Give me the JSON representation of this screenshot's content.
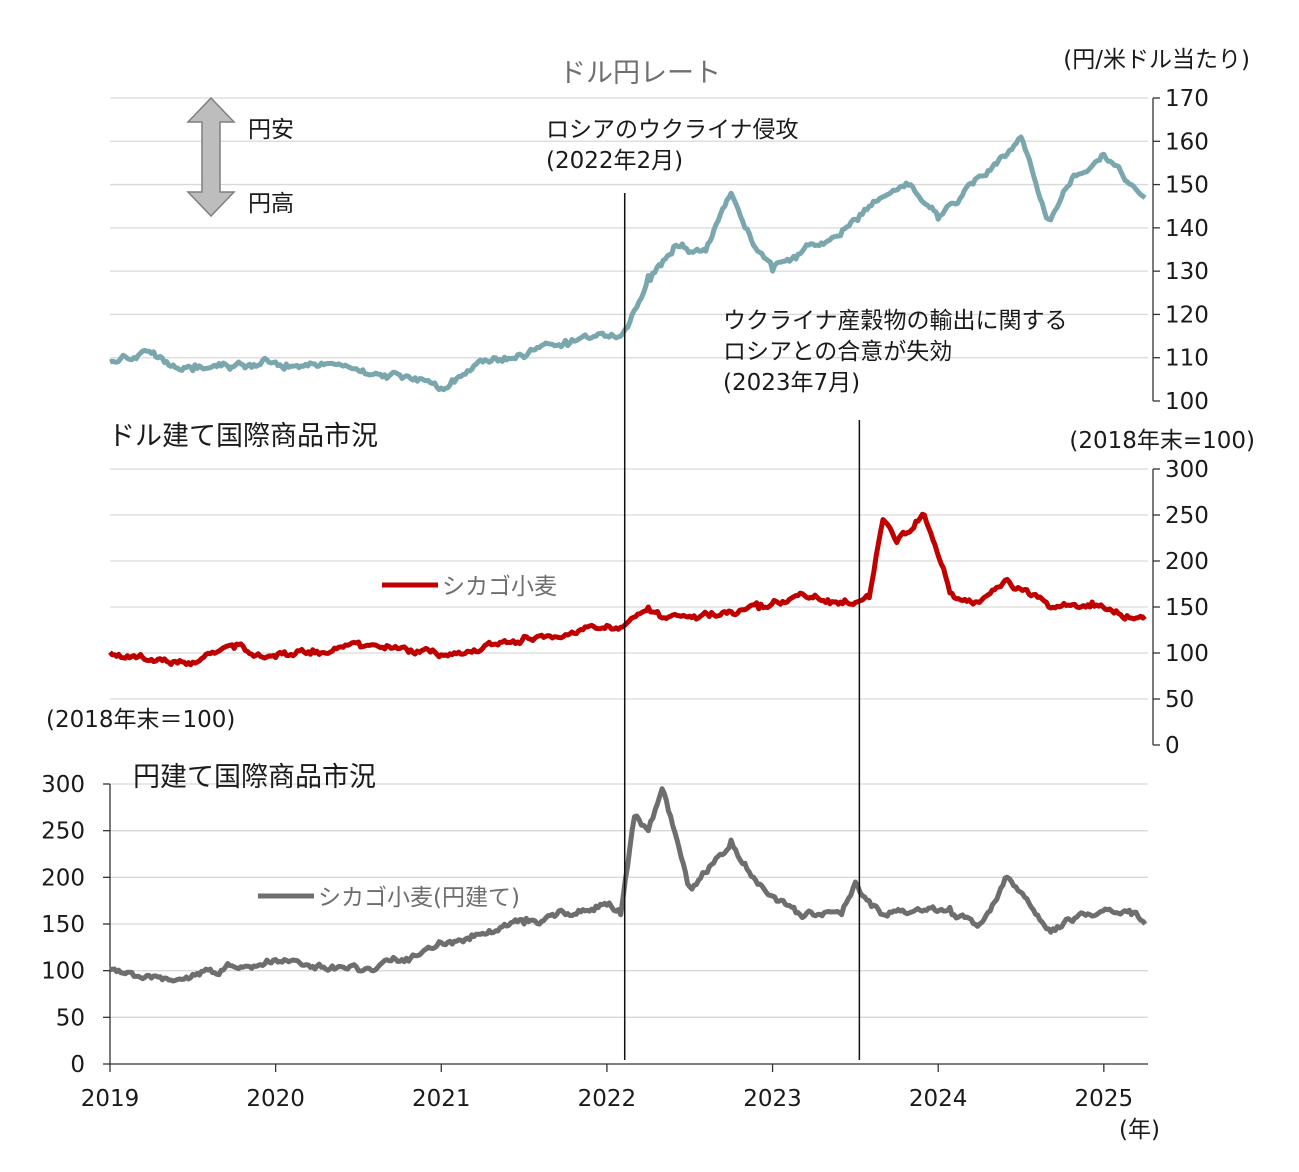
{
  "chart_data": [
    {
      "type": "line",
      "title": "ドル円レート",
      "unit": "(円/米ドル当たり)",
      "ylim": [
        100,
        170
      ],
      "yticks": [
        "100",
        "110",
        "120",
        "130",
        "140",
        "150",
        "160",
        "170"
      ],
      "axis_side": "right",
      "grid": true,
      "color": "#7aa6ad",
      "indicator": {
        "up_label": "円安",
        "down_label": "円高"
      },
      "x": [
        "2019-01",
        "2019-04",
        "2019-07",
        "2019-10",
        "2020-01",
        "2020-03",
        "2020-04",
        "2020-07",
        "2020-10",
        "2021-01",
        "2021-04",
        "2021-07",
        "2021-10",
        "2022-01",
        "2022-02",
        "2022-03",
        "2022-04",
        "2022-06",
        "2022-08",
        "2022-10",
        "2022-11",
        "2023-01",
        "2023-03",
        "2023-05",
        "2023-07",
        "2023-08",
        "2023-11",
        "2024-01",
        "2024-04",
        "2024-06",
        "2024-07",
        "2024-09",
        "2024-11",
        "2025-01",
        "2025-03",
        "2025-04"
      ],
      "series": [
        {
          "values": [
            109,
            111,
            107,
            108,
            109,
            108,
            108,
            107,
            106,
            103,
            109,
            110,
            114,
            115,
            115,
            121,
            129,
            136,
            135,
            148,
            140,
            130,
            134,
            137,
            142,
            145,
            150,
            142,
            152,
            157,
            161,
            142,
            152,
            157,
            150,
            147
          ]
        }
      ]
    },
    {
      "type": "line",
      "title": "ドル建て国際商品市況",
      "unit": "(2018年末=100)",
      "ylim": [
        0,
        300
      ],
      "yticks": [
        "0",
        "50",
        "100",
        "150",
        "200",
        "250",
        "300"
      ],
      "axis_side": "right",
      "grid": true,
      "color": "#c00000",
      "x": [
        "2019-01",
        "2019-04",
        "2019-07",
        "2019-10",
        "2020-01",
        "2020-04",
        "2020-07",
        "2020-10",
        "2021-01",
        "2021-04",
        "2021-07",
        "2021-10",
        "2022-01",
        "2022-02",
        "2022-04",
        "2022-05",
        "2022-07",
        "2022-10",
        "2022-12",
        "2023-03",
        "2023-05",
        "2023-07",
        "2023-08",
        "2023-09",
        "2023-10",
        "2023-12",
        "2024-02",
        "2024-04",
        "2024-06",
        "2024-09",
        "2024-12",
        "2025-03",
        "2025-04"
      ],
      "series": [
        {
          "name": "シカゴ小麦",
          "values": [
            101,
            93,
            90,
            105,
            95,
            102,
            112,
            105,
            98,
            105,
            118,
            120,
            130,
            128,
            150,
            138,
            140,
            145,
            148,
            165,
            158,
            155,
            160,
            245,
            220,
            250,
            165,
            155,
            180,
            150,
            150,
            138,
            140
          ]
        }
      ]
    },
    {
      "type": "line",
      "title": "円建て国際商品市況",
      "unit": "(2018年末＝100)",
      "ylim": [
        0,
        300
      ],
      "yticks": [
        "0",
        "50",
        "100",
        "150",
        "200",
        "250",
        "300"
      ],
      "axis_side": "left",
      "grid": true,
      "color": "#6e6e6e",
      "xticks": [
        "2019",
        "2020",
        "2021",
        "2022",
        "2023",
        "2024",
        "2025"
      ],
      "xunit": "(年)",
      "x": [
        "2019-01",
        "2019-04",
        "2019-07",
        "2019-10",
        "2020-01",
        "2020-04",
        "2020-07",
        "2020-10",
        "2021-01",
        "2021-04",
        "2021-07",
        "2021-10",
        "2022-01",
        "2022-02",
        "2022-03",
        "2022-04",
        "2022-05",
        "2022-07",
        "2022-10",
        "2022-11",
        "2023-01",
        "2023-03",
        "2023-06",
        "2023-07",
        "2023-08",
        "2023-09",
        "2023-12",
        "2024-02",
        "2024-04",
        "2024-06",
        "2024-09",
        "2024-12",
        "2025-03",
        "2025-04"
      ],
      "series": [
        {
          "name": "シカゴ小麦(円建て)",
          "values": [
            101,
            92,
            96,
            104,
            112,
            105,
            100,
            110,
            130,
            140,
            150,
            160,
            170,
            160,
            265,
            250,
            295,
            190,
            240,
            215,
            180,
            160,
            160,
            195,
            175,
            160,
            165,
            160,
            150,
            200,
            145,
            160,
            160,
            150
          ]
        }
      ]
    }
  ],
  "events": [
    {
      "date": "2022-02",
      "label_lines": [
        "ロシアのウクライナ侵攻",
        "(2022年2月)"
      ]
    },
    {
      "date": "2023-07",
      "label_lines": [
        "ウクライナ産穀物の輸出に関する",
        "ロシアとの合意が失効",
        "(2023年7月)"
      ]
    }
  ]
}
